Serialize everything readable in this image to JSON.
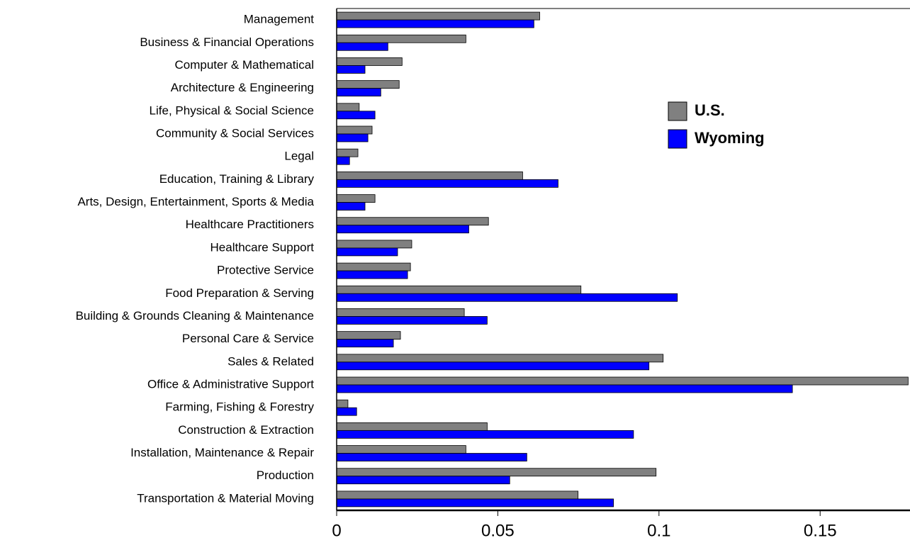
{
  "chart_data": {
    "type": "barh",
    "categories": [
      "Management",
      "Business & Financial Operations",
      "Computer & Mathematical",
      "Architecture & Engineering",
      "Life, Physical & Social Science",
      "Community & Social Services",
      "Legal",
      "Education, Training & Library",
      "Arts, Design, Entertainment, Sports & Media",
      "Healthcare Practitioners",
      "Healthcare Support",
      "Protective Service",
      "Food Preparation & Serving",
      "Building & Grounds Cleaning & Maintenance",
      "Personal Care & Service",
      "Sales & Related",
      "Office & Administrative Support",
      "Farming, Fishing & Forestry",
      "Construction & Extraction",
      "Installation, Maintenance & Repair",
      "Production",
      "Transportation & Material Moving"
    ],
    "series": [
      {
        "name": "U.S.",
        "color": "#808080",
        "values": [
          0.063,
          0.0401,
          0.0203,
          0.0194,
          0.007,
          0.011,
          0.0066,
          0.0577,
          0.0119,
          0.0471,
          0.0233,
          0.0229,
          0.0758,
          0.0396,
          0.0198,
          0.1013,
          0.1773,
          0.0035,
          0.0467,
          0.0401,
          0.0991,
          0.0749
        ]
      },
      {
        "name": "Wyoming",
        "color": "#0000ff",
        "values": [
          0.0612,
          0.0159,
          0.0088,
          0.0137,
          0.0119,
          0.0097,
          0.004,
          0.0687,
          0.0088,
          0.041,
          0.0189,
          0.022,
          0.1057,
          0.0467,
          0.0176,
          0.0969,
          0.1414,
          0.0062,
          0.0921,
          0.059,
          0.0537,
          0.0859
        ]
      }
    ],
    "xlim": [
      0,
      0.177
    ],
    "xticks": [
      0,
      0.05,
      0.1,
      0.15
    ],
    "legend": "upper right"
  }
}
